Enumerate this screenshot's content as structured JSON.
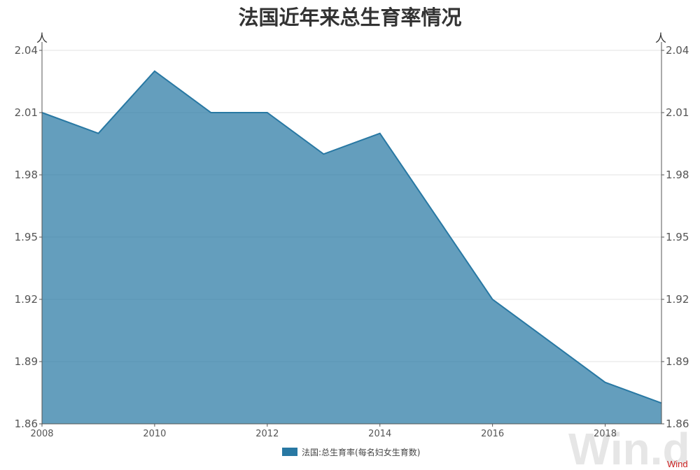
{
  "chart_data": {
    "type": "area",
    "title": "法国近年来总生育率情况",
    "y_unit_left": "人",
    "y_unit_right": "人",
    "x": [
      2008,
      2009,
      2010,
      2011,
      2012,
      2013,
      2014,
      2015,
      2016,
      2017,
      2018,
      2019
    ],
    "x_tick_labels": [
      "2008",
      "2010",
      "2012",
      "2014",
      "2016",
      "2018"
    ],
    "y_tick_labels": [
      "2.04",
      "2.01",
      "1.98",
      "1.95",
      "1.92",
      "1.89",
      "1.86"
    ],
    "ylim": [
      1.86,
      2.04
    ],
    "grid": true,
    "legend_position": "bottom",
    "series": [
      {
        "name": "法国:总生育率(每名妇女生育数)",
        "color": "#2878a3",
        "values": [
          2.01,
          2.0,
          2.03,
          2.01,
          2.01,
          1.99,
          2.0,
          1.96,
          1.92,
          1.9,
          1.88,
          1.87
        ]
      }
    ]
  },
  "watermark": "Win.d",
  "source": "Wind"
}
